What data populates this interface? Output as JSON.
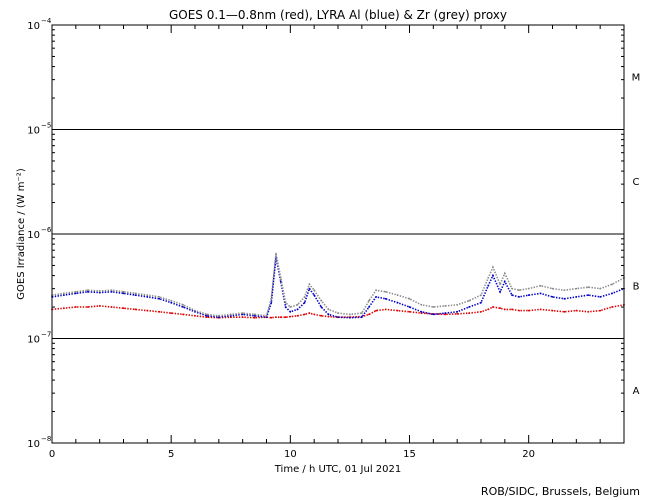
{
  "chart_data": {
    "type": "line",
    "title": "GOES 0.1—0.8nm (red), LYRA Al (blue) & Zr (grey) proxy",
    "xlabel": "Time / h UTC, 01 Jul 2021",
    "ylabel": "GOES Irradiance / (W m⁻²)",
    "credit": "ROB/SIDC, Brussels, Belgium",
    "xlim": [
      0,
      24
    ],
    "ylim": [
      1e-08,
      0.0001
    ],
    "yscale": "log",
    "grid": false,
    "x_ticks": [
      {
        "value": 0,
        "label": "0"
      },
      {
        "value": 5,
        "label": "5"
      },
      {
        "value": 10,
        "label": "10"
      },
      {
        "value": 15,
        "label": "15"
      },
      {
        "value": 20,
        "label": "20"
      }
    ],
    "y_ticks": [
      {
        "value": 1e-08,
        "base": "10",
        "exp": "−8"
      },
      {
        "value": 1e-07,
        "base": "10",
        "exp": "−7"
      },
      {
        "value": 1e-06,
        "base": "10",
        "exp": "−6"
      },
      {
        "value": 1e-05,
        "base": "10",
        "exp": "−5"
      },
      {
        "value": 0.0001,
        "base": "10",
        "exp": "−4"
      }
    ],
    "flare_class_lines": [
      1e-07,
      1e-06,
      1e-05
    ],
    "flare_classes": [
      {
        "label": "A",
        "value": 3.2e-08
      },
      {
        "label": "B",
        "value": 3.2e-07
      },
      {
        "label": "C",
        "value": 3.2e-06
      },
      {
        "label": "M",
        "value": 3.2e-05
      }
    ],
    "series": [
      {
        "color": "#e00000",
        "x": [
          0,
          0.5,
          1,
          1.5,
          2,
          2.5,
          3,
          3.5,
          4,
          4.5,
          5,
          5.5,
          6,
          6.5,
          7,
          7.5,
          8,
          8.5,
          9,
          9.2,
          9.4,
          9.6,
          9.8,
          10,
          10.3,
          10.6,
          10.8,
          11.0,
          11.3,
          11.6,
          12,
          12.5,
          13,
          13.3,
          13.6,
          14,
          14.5,
          15,
          15.5,
          16,
          16.5,
          17,
          17.5,
          18,
          18.3,
          18.5,
          18.8,
          19,
          19.3,
          19.6,
          20,
          20.5,
          21,
          21.5,
          22,
          22.5,
          23,
          23.5,
          24
        ],
        "y": [
          1.9e-07,
          1.95e-07,
          2e-07,
          2e-07,
          2.05e-07,
          2e-07,
          1.95e-07,
          1.9e-07,
          1.85e-07,
          1.8e-07,
          1.75e-07,
          1.7e-07,
          1.65e-07,
          1.6e-07,
          1.58e-07,
          1.6e-07,
          1.6e-07,
          1.58e-07,
          1.6e-07,
          1.58e-07,
          1.6e-07,
          1.6e-07,
          1.6e-07,
          1.62e-07,
          1.65e-07,
          1.7e-07,
          1.75e-07,
          1.7e-07,
          1.65e-07,
          1.62e-07,
          1.6e-07,
          1.6e-07,
          1.62e-07,
          1.7e-07,
          1.85e-07,
          1.9e-07,
          1.85e-07,
          1.8e-07,
          1.75e-07,
          1.72e-07,
          1.7e-07,
          1.72e-07,
          1.75e-07,
          1.8e-07,
          1.9e-07,
          2e-07,
          1.95e-07,
          1.9e-07,
          1.9e-07,
          1.85e-07,
          1.85e-07,
          1.9e-07,
          1.85e-07,
          1.8e-07,
          1.85e-07,
          1.8e-07,
          1.85e-07,
          2e-07,
          2.1e-07
        ]
      },
      {
        "color": "#0000c8",
        "x": [
          0,
          0.5,
          1,
          1.5,
          2,
          2.5,
          3,
          3.5,
          4,
          4.5,
          5,
          5.5,
          6,
          6.5,
          7,
          7.5,
          8,
          8.5,
          9,
          9.2,
          9.4,
          9.6,
          9.8,
          10,
          10.3,
          10.6,
          10.8,
          11.0,
          11.3,
          11.6,
          12,
          12.5,
          13,
          13.3,
          13.6,
          14,
          14.5,
          15,
          15.5,
          16,
          16.5,
          17,
          17.5,
          18,
          18.3,
          18.5,
          18.8,
          19,
          19.3,
          19.6,
          20,
          20.5,
          21,
          21.5,
          22,
          22.5,
          23,
          23.5,
          24
        ],
        "y": [
          2.5e-07,
          2.6e-07,
          2.7e-07,
          2.8e-07,
          2.75e-07,
          2.8e-07,
          2.7e-07,
          2.6e-07,
          2.5e-07,
          2.4e-07,
          2.2e-07,
          2e-07,
          1.8e-07,
          1.65e-07,
          1.6e-07,
          1.65e-07,
          1.7e-07,
          1.65e-07,
          1.6e-07,
          2.2e-07,
          6e-07,
          3.5e-07,
          2e-07,
          1.8e-07,
          1.9e-07,
          2.2e-07,
          3e-07,
          2.6e-07,
          2e-07,
          1.7e-07,
          1.6e-07,
          1.58e-07,
          1.6e-07,
          2e-07,
          2.5e-07,
          2.4e-07,
          2.2e-07,
          2e-07,
          1.8e-07,
          1.7e-07,
          1.75e-07,
          1.8e-07,
          2e-07,
          2.2e-07,
          3.2e-07,
          4e-07,
          2.8e-07,
          3.5e-07,
          2.6e-07,
          2.5e-07,
          2.6e-07,
          2.7e-07,
          2.5e-07,
          2.4e-07,
          2.5e-07,
          2.6e-07,
          2.5e-07,
          2.7e-07,
          3e-07
        ]
      },
      {
        "color": "#8c8c8c",
        "x": [
          0,
          0.5,
          1,
          1.5,
          2,
          2.5,
          3,
          3.5,
          4,
          4.5,
          5,
          5.5,
          6,
          6.5,
          7,
          7.5,
          8,
          8.5,
          9,
          9.2,
          9.4,
          9.6,
          9.8,
          10,
          10.3,
          10.6,
          10.8,
          11.0,
          11.3,
          11.6,
          12,
          12.5,
          13,
          13.3,
          13.6,
          14,
          14.5,
          15,
          15.5,
          16,
          16.5,
          17,
          17.5,
          18,
          18.3,
          18.5,
          18.8,
          19,
          19.3,
          19.6,
          20,
          20.5,
          21,
          21.5,
          22,
          22.5,
          23,
          23.5,
          24
        ],
        "y": [
          2.6e-07,
          2.7e-07,
          2.8e-07,
          2.9e-07,
          2.85e-07,
          2.9e-07,
          2.8e-07,
          2.7e-07,
          2.6e-07,
          2.5e-07,
          2.3e-07,
          2.1e-07,
          1.85e-07,
          1.7e-07,
          1.65e-07,
          1.7e-07,
          1.75e-07,
          1.7e-07,
          1.65e-07,
          2.4e-07,
          6.5e-07,
          3.8e-07,
          2.2e-07,
          2e-07,
          2.1e-07,
          2.5e-07,
          3.3e-07,
          2.9e-07,
          2.3e-07,
          1.9e-07,
          1.75e-07,
          1.7e-07,
          1.75e-07,
          2.3e-07,
          2.9e-07,
          2.8e-07,
          2.6e-07,
          2.4e-07,
          2.1e-07,
          2e-07,
          2.05e-07,
          2.1e-07,
          2.3e-07,
          2.6e-07,
          3.8e-07,
          4.8e-07,
          3.3e-07,
          4.2e-07,
          3e-07,
          2.9e-07,
          3e-07,
          3.2e-07,
          3e-07,
          2.9e-07,
          3e-07,
          3.1e-07,
          3e-07,
          3.3e-07,
          3.8e-07
        ]
      }
    ]
  }
}
